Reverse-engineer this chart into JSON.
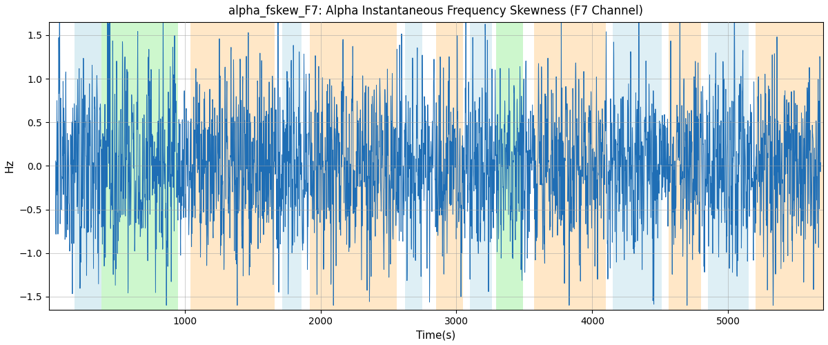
{
  "title": "alpha_fskew_F7: Alpha Instantaneous Frequency Skewness (F7 Channel)",
  "xlabel": "Time(s)",
  "ylabel": "Hz",
  "ylim": [
    -1.65,
    1.65
  ],
  "xlim": [
    0,
    5700
  ],
  "line_color": "#1f6eb5",
  "line_width": 0.7,
  "background_color": "#ffffff",
  "grid_color": "#a0a0a0",
  "grid_alpha": 0.6,
  "grid_linewidth": 0.6,
  "title_fontsize": 12,
  "label_fontsize": 11,
  "tick_fontsize": 10,
  "bands": [
    {
      "xstart": 190,
      "xend": 385,
      "color": "#add8e6",
      "alpha": 0.45
    },
    {
      "xstart": 385,
      "xend": 950,
      "color": "#90ee90",
      "alpha": 0.45
    },
    {
      "xstart": 1040,
      "xend": 1660,
      "color": "#ffd59a",
      "alpha": 0.55
    },
    {
      "xstart": 1720,
      "xend": 1860,
      "color": "#add8e6",
      "alpha": 0.4
    },
    {
      "xstart": 1920,
      "xend": 2560,
      "color": "#ffd59a",
      "alpha": 0.55
    },
    {
      "xstart": 2620,
      "xend": 2750,
      "color": "#add8e6",
      "alpha": 0.4
    },
    {
      "xstart": 2850,
      "xend": 3050,
      "color": "#ffd59a",
      "alpha": 0.55
    },
    {
      "xstart": 3100,
      "xend": 3260,
      "color": "#add8e6",
      "alpha": 0.4
    },
    {
      "xstart": 3290,
      "xend": 3490,
      "color": "#90ee90",
      "alpha": 0.45
    },
    {
      "xstart": 3570,
      "xend": 4100,
      "color": "#ffd59a",
      "alpha": 0.55
    },
    {
      "xstart": 4150,
      "xend": 4510,
      "color": "#add8e6",
      "alpha": 0.4
    },
    {
      "xstart": 4560,
      "xend": 4800,
      "color": "#ffd59a",
      "alpha": 0.55
    },
    {
      "xstart": 4850,
      "xend": 5150,
      "color": "#add8e6",
      "alpha": 0.4
    },
    {
      "xstart": 5200,
      "xend": 5700,
      "color": "#ffd59a",
      "alpha": 0.55
    }
  ],
  "xticks": [
    1000,
    2000,
    3000,
    4000,
    5000
  ],
  "yticks": [
    -1.5,
    -1.0,
    -0.5,
    0.0,
    0.5,
    1.0,
    1.5
  ],
  "seed": 12345,
  "n_points": 5500,
  "x_start": 50,
  "x_end": 5680
}
